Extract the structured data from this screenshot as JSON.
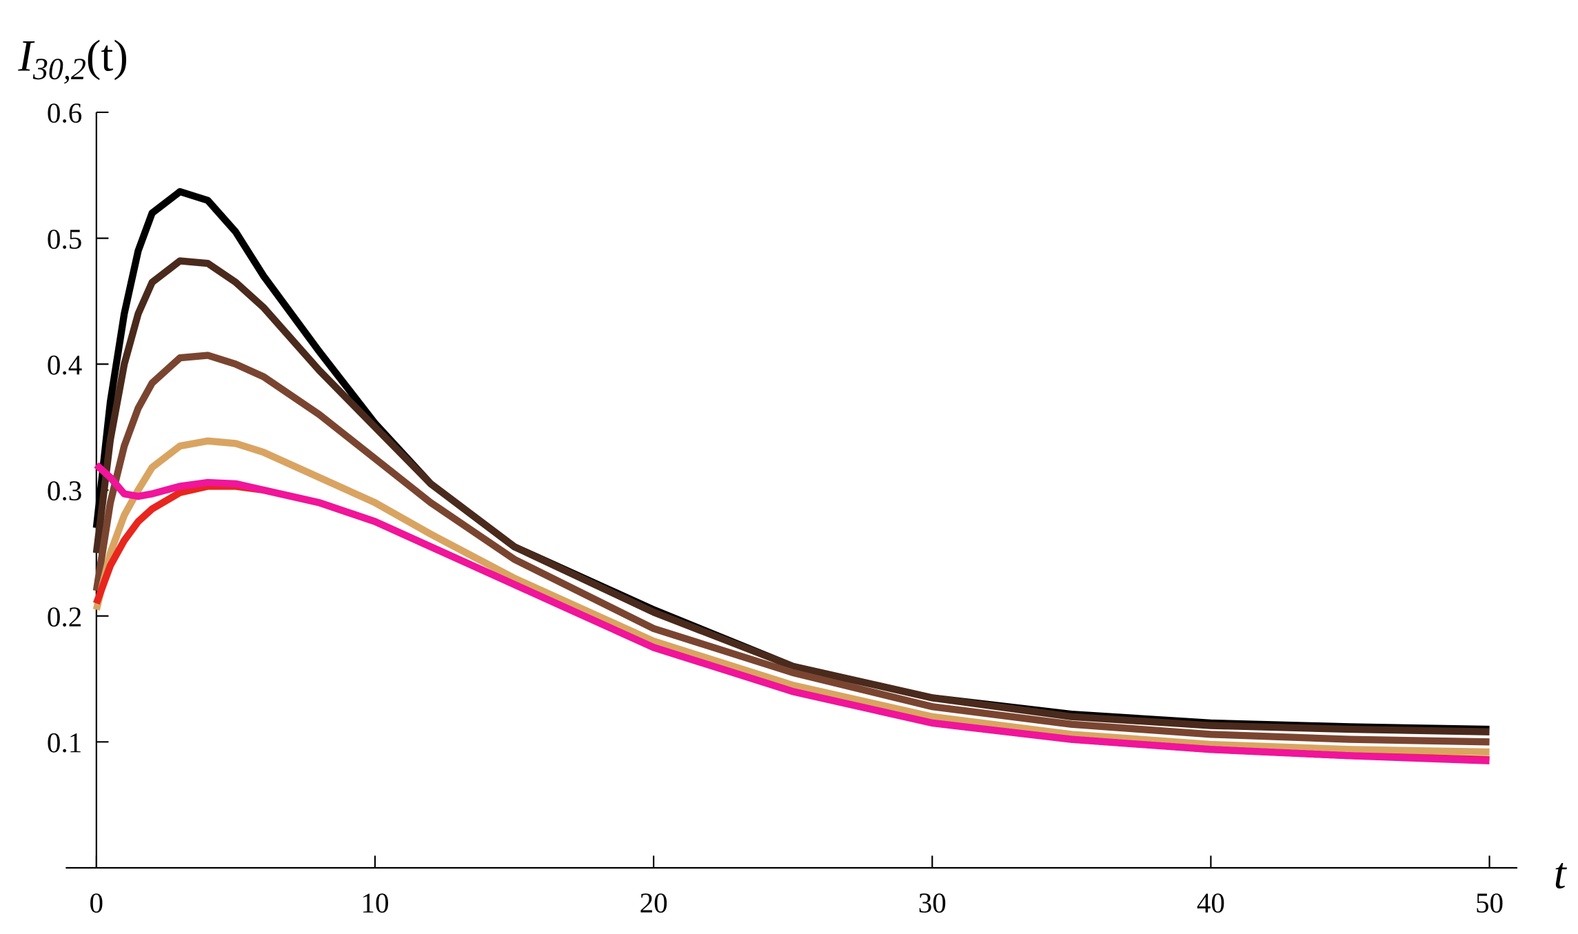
{
  "chart_data": {
    "type": "line",
    "y_label": {
      "main": "I",
      "subscript": "30,2",
      "suffix": "(t)"
    },
    "x_label": "t",
    "xlim": [
      -1.1,
      51
    ],
    "ylim": [
      0,
      0.6
    ],
    "xticks": [
      0,
      10,
      20,
      30,
      40,
      50
    ],
    "yticks": [
      0.1,
      0.2,
      0.3,
      0.4,
      0.5,
      0.6
    ],
    "x": [
      0,
      0.5,
      1,
      1.5,
      2,
      3,
      4,
      5,
      6,
      8,
      10,
      12,
      15,
      20,
      25,
      30,
      35,
      40,
      45,
      50
    ],
    "series": [
      {
        "color": "#000000",
        "values": [
          0.27,
          0.37,
          0.44,
          0.49,
          0.52,
          0.537,
          0.53,
          0.505,
          0.47,
          0.41,
          0.353,
          0.305,
          0.255,
          0.205,
          0.16,
          0.135,
          0.122,
          0.115,
          0.112,
          0.11
        ]
      },
      {
        "color": "#4a2a1c",
        "values": [
          0.25,
          0.34,
          0.4,
          0.44,
          0.465,
          0.482,
          0.48,
          0.465,
          0.445,
          0.395,
          0.35,
          0.305,
          0.255,
          0.203,
          0.16,
          0.135,
          0.12,
          0.113,
          0.11,
          0.108
        ]
      },
      {
        "color": "#7a4530",
        "values": [
          0.22,
          0.29,
          0.335,
          0.365,
          0.385,
          0.405,
          0.407,
          0.4,
          0.39,
          0.36,
          0.325,
          0.29,
          0.245,
          0.19,
          0.155,
          0.128,
          0.114,
          0.106,
          0.102,
          0.1
        ]
      },
      {
        "color": "#d9a462",
        "values": [
          0.205,
          0.25,
          0.28,
          0.3,
          0.318,
          0.335,
          0.339,
          0.337,
          0.33,
          0.31,
          0.29,
          0.265,
          0.23,
          0.18,
          0.145,
          0.12,
          0.106,
          0.098,
          0.094,
          0.092
        ]
      },
      {
        "color": "#e8261e",
        "values": [
          0.21,
          0.24,
          0.26,
          0.275,
          0.285,
          0.298,
          0.303,
          0.303,
          0.3,
          0.29,
          0.275,
          0.255,
          0.225,
          0.175,
          0.14,
          0.115,
          0.102,
          0.094,
          0.089,
          0.086
        ]
      },
      {
        "color": "#f0159a",
        "values": [
          0.32,
          0.31,
          0.297,
          0.295,
          0.297,
          0.303,
          0.306,
          0.305,
          0.3,
          0.29,
          0.275,
          0.255,
          0.225,
          0.175,
          0.14,
          0.115,
          0.102,
          0.094,
          0.089,
          0.085
        ]
      }
    ]
  }
}
